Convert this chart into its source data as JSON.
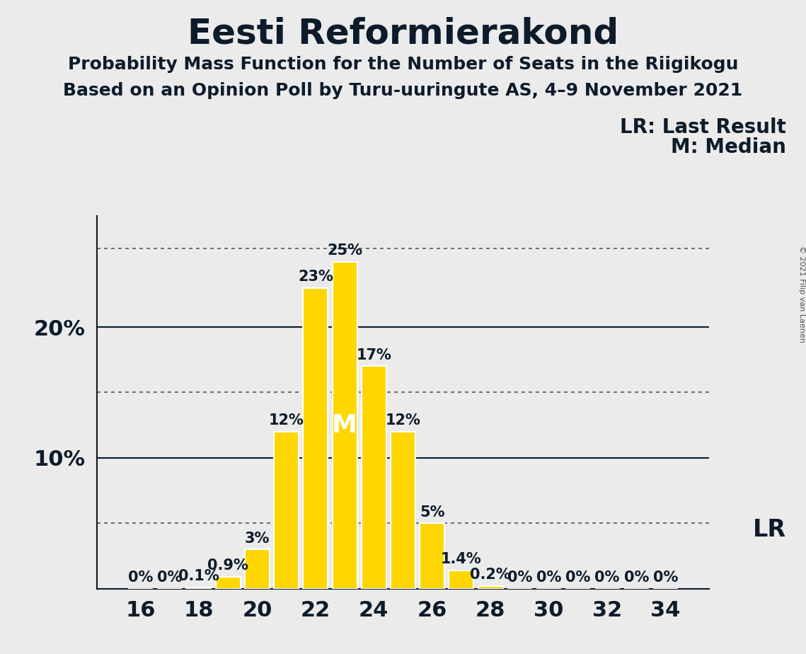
{
  "title": "Eesti Reformierakond",
  "subtitle1": "Probability Mass Function for the Number of Seats in the Riigikogu",
  "subtitle2": "Based on an Opinion Poll by Turu-uuringute AS, 4–9 November 2021",
  "copyright": "© 2021 Filip van Laenen",
  "seats": [
    16,
    17,
    18,
    19,
    20,
    21,
    22,
    23,
    24,
    25,
    26,
    27,
    28,
    29,
    30,
    31,
    32,
    33,
    34
  ],
  "probabilities": [
    0.0,
    0.0,
    0.1,
    0.9,
    3.0,
    12.0,
    23.0,
    25.0,
    17.0,
    12.0,
    5.0,
    1.4,
    0.2,
    0.0,
    0.0,
    0.0,
    0.0,
    0.0,
    0.0
  ],
  "bar_color": "#FFD700",
  "background_color": "#EBEBEB",
  "median_seat": 23,
  "lr_seat": 34,
  "lr_label": "LR",
  "median_label": "M",
  "legend_lr": "LR: Last Result",
  "legend_m": "M: Median",
  "solid_lines": [
    10.0,
    20.0
  ],
  "dotted_lines": [
    5.0,
    15.0,
    26.0
  ],
  "xlim": [
    14.5,
    35.5
  ],
  "ylim": [
    0,
    28.5
  ],
  "bar_width": 0.85,
  "title_fontsize": 36,
  "subtitle_fontsize": 18,
  "tick_fontsize": 22,
  "annotation_fontsize": 15,
  "legend_fontsize": 20,
  "text_color": "#0d1b2a"
}
